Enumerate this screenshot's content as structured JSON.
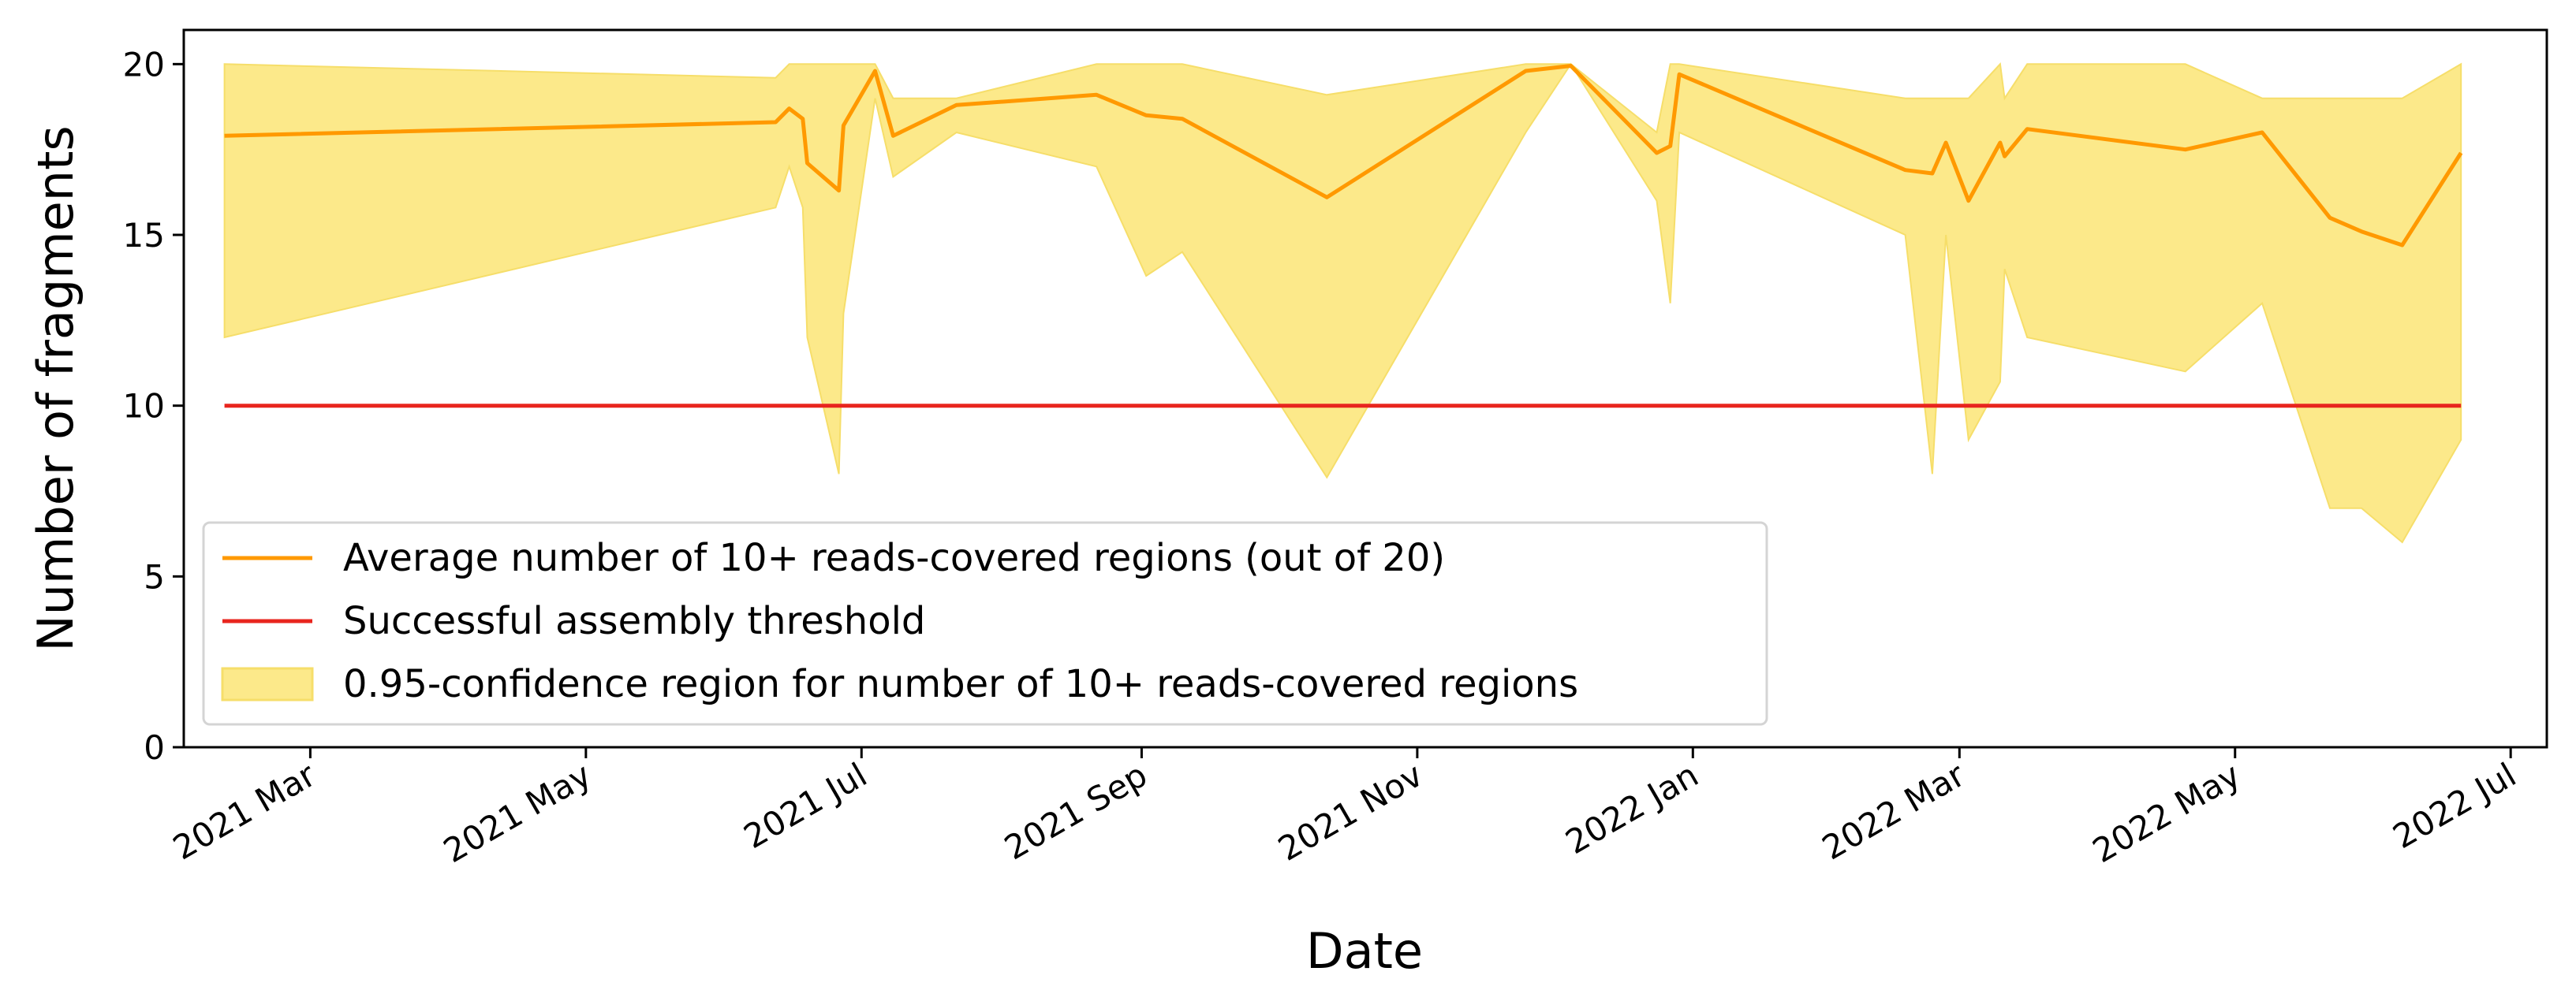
{
  "chart_data": {
    "type": "line",
    "xlabel": "Date",
    "ylabel": "Number of fragments",
    "ylim": [
      0,
      21
    ],
    "xlim": [
      "2021-02-01",
      "2022-07-09"
    ],
    "y_ticks": [
      0,
      5,
      10,
      15,
      20
    ],
    "x_ticks": [
      {
        "date": "2021-03-01",
        "label": "2021 Mar"
      },
      {
        "date": "2021-05-01",
        "label": "2021 May"
      },
      {
        "date": "2021-07-01",
        "label": "2021 Jul"
      },
      {
        "date": "2021-09-01",
        "label": "2021 Sep"
      },
      {
        "date": "2021-11-01",
        "label": "2021 Nov"
      },
      {
        "date": "2022-01-01",
        "label": "2022 Jan"
      },
      {
        "date": "2022-03-01",
        "label": "2022 Mar"
      },
      {
        "date": "2022-05-01",
        "label": "2022 May"
      },
      {
        "date": "2022-07-01",
        "label": "2022 Jul"
      }
    ],
    "grid": false,
    "legend_position": "lower-left",
    "colors": {
      "average": "#ff9900",
      "threshold": "#e8251e",
      "band_fill": "#fce98a",
      "band_edge": "#f6de6a"
    },
    "series": [
      {
        "name": "Average number of 10+ reads-covered regions (out of 20)",
        "role": "average",
        "points": [
          {
            "x": "2021-02-10",
            "y": 17.9
          },
          {
            "x": "2021-06-12",
            "y": 18.3
          },
          {
            "x": "2021-06-15",
            "y": 18.7
          },
          {
            "x": "2021-06-18",
            "y": 18.4
          },
          {
            "x": "2021-06-19",
            "y": 17.1
          },
          {
            "x": "2021-06-26",
            "y": 16.3
          },
          {
            "x": "2021-06-27",
            "y": 18.2
          },
          {
            "x": "2021-07-04",
            "y": 19.8
          },
          {
            "x": "2021-07-08",
            "y": 17.9
          },
          {
            "x": "2021-07-22",
            "y": 18.8
          },
          {
            "x": "2021-08-22",
            "y": 19.1
          },
          {
            "x": "2021-09-02",
            "y": 18.5
          },
          {
            "x": "2021-09-10",
            "y": 18.4
          },
          {
            "x": "2021-10-12",
            "y": 16.1
          },
          {
            "x": "2021-11-25",
            "y": 19.8
          },
          {
            "x": "2021-12-05",
            "y": 19.95
          },
          {
            "x": "2021-12-24",
            "y": 17.4
          },
          {
            "x": "2021-12-27",
            "y": 17.6
          },
          {
            "x": "2021-12-29",
            "y": 19.7
          },
          {
            "x": "2022-02-17",
            "y": 16.9
          },
          {
            "x": "2022-02-23",
            "y": 16.8
          },
          {
            "x": "2022-02-26",
            "y": 17.7
          },
          {
            "x": "2022-03-03",
            "y": 16.0
          },
          {
            "x": "2022-03-10",
            "y": 17.7
          },
          {
            "x": "2022-03-11",
            "y": 17.3
          },
          {
            "x": "2022-03-16",
            "y": 18.1
          },
          {
            "x": "2022-04-20",
            "y": 17.5
          },
          {
            "x": "2022-05-07",
            "y": 18.0
          },
          {
            "x": "2022-05-22",
            "y": 15.5
          },
          {
            "x": "2022-05-29",
            "y": 15.1
          },
          {
            "x": "2022-06-07",
            "y": 14.7
          },
          {
            "x": "2022-06-20",
            "y": 17.4
          }
        ]
      },
      {
        "name": "Successful assembly threshold",
        "role": "threshold",
        "points": [
          {
            "x": "2021-02-10",
            "y": 10
          },
          {
            "x": "2022-06-20",
            "y": 10
          }
        ]
      },
      {
        "name": "0.95-confidence region for number of 10+ reads-covered regions",
        "role": "band",
        "x": [
          "2021-02-10",
          "2021-06-12",
          "2021-06-15",
          "2021-06-18",
          "2021-06-19",
          "2021-06-26",
          "2021-06-27",
          "2021-07-04",
          "2021-07-08",
          "2021-07-22",
          "2021-08-22",
          "2021-09-02",
          "2021-09-10",
          "2021-10-12",
          "2021-11-25",
          "2021-12-05",
          "2021-12-24",
          "2021-12-27",
          "2021-12-29",
          "2022-02-17",
          "2022-02-23",
          "2022-02-26",
          "2022-03-03",
          "2022-03-10",
          "2022-03-11",
          "2022-03-16",
          "2022-04-20",
          "2022-05-07",
          "2022-05-22",
          "2022-05-29",
          "2022-06-07",
          "2022-06-20"
        ],
        "lower": [
          12,
          15.8,
          17,
          15.8,
          12,
          8,
          12.7,
          19,
          16.7,
          18,
          17,
          13.8,
          14.5,
          7.9,
          18,
          20,
          16,
          13,
          18,
          15,
          8,
          15,
          9,
          10.7,
          14,
          12,
          11,
          13,
          7,
          7,
          6,
          9
        ],
        "upper": [
          20,
          19.6,
          20,
          20,
          20,
          20,
          20,
          20,
          19,
          19,
          20,
          20,
          20,
          19.1,
          20,
          20,
          18,
          20,
          20,
          19,
          19,
          19,
          19,
          20,
          19,
          20,
          20,
          19,
          19,
          19,
          19,
          20
        ]
      }
    ]
  }
}
